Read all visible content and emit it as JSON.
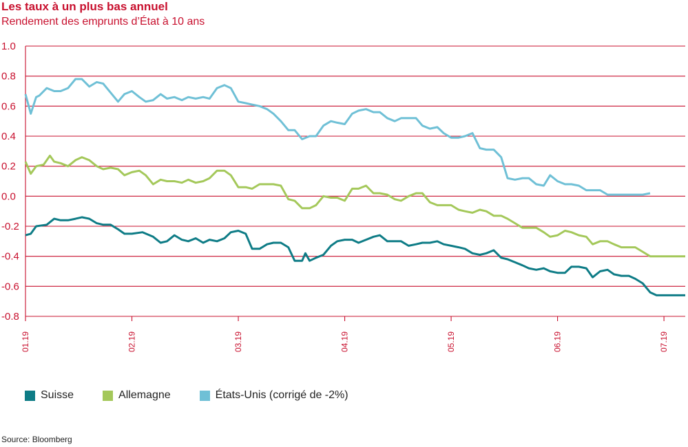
{
  "title": "Les taux à un plus bas annuel",
  "subtitle": "Rendement des emprunts d’État à 10 ans",
  "source": "Source: Bloomberg",
  "colors": {
    "accent": "#c8102e",
    "suisse": "#0e7c86",
    "allemagne": "#a4c85a",
    "etats_unis": "#6fc0d6"
  },
  "chart_data": {
    "type": "line",
    "ylim": [
      -0.8,
      1.0
    ],
    "yticks": [
      1.0,
      0.8,
      0.6,
      0.4,
      0.2,
      0.0,
      -0.2,
      -0.4,
      -0.6,
      -0.8
    ],
    "ytick_labels": [
      "1.0",
      "0.8",
      "0.6",
      "0.4",
      "0.2",
      "0.0",
      "-0.2",
      "-0.4",
      "-0.6",
      "-0.8"
    ],
    "x_range": [
      0,
      6.2
    ],
    "xticks": [
      0,
      1,
      2,
      3,
      4,
      5,
      6
    ],
    "xtick_labels": [
      "01.19",
      "02.19",
      "03.19",
      "04.19",
      "05.19",
      "06.19",
      "07.19"
    ],
    "grid": true,
    "legend_position": "bottom",
    "series": [
      {
        "name": "Suisse",
        "color_key": "suisse",
        "x": [
          0,
          0.05,
          0.1,
          0.2,
          0.27,
          0.33,
          0.4,
          0.47,
          0.53,
          0.6,
          0.67,
          0.73,
          0.8,
          0.87,
          0.93,
          1.0,
          1.1,
          1.2,
          1.27,
          1.33,
          1.4,
          1.47,
          1.53,
          1.6,
          1.67,
          1.73,
          1.8,
          1.87,
          1.93,
          2.0,
          2.07,
          2.13,
          2.2,
          2.27,
          2.33,
          2.4,
          2.47,
          2.53,
          2.6,
          2.63,
          2.67,
          2.73,
          2.8,
          2.87,
          2.93,
          3.0,
          3.07,
          3.13,
          3.2,
          3.27,
          3.33,
          3.4,
          3.47,
          3.53,
          3.6,
          3.67,
          3.73,
          3.8,
          3.87,
          3.93,
          4.0,
          4.07,
          4.13,
          4.2,
          4.27,
          4.33,
          4.4,
          4.47,
          4.53,
          4.6,
          4.67,
          4.73,
          4.8,
          4.87,
          4.93,
          5.0,
          5.07,
          5.13,
          5.2,
          5.27,
          5.33,
          5.4,
          5.47,
          5.53,
          5.6,
          5.67,
          5.73,
          5.8,
          5.87,
          5.93,
          6.0,
          6.07,
          6.13,
          6.2
        ],
        "values": [
          -0.26,
          -0.25,
          -0.2,
          -0.19,
          -0.15,
          -0.16,
          -0.16,
          -0.15,
          -0.14,
          -0.15,
          -0.18,
          -0.19,
          -0.19,
          -0.22,
          -0.25,
          -0.25,
          -0.24,
          -0.27,
          -0.31,
          -0.3,
          -0.26,
          -0.29,
          -0.3,
          -0.28,
          -0.31,
          -0.29,
          -0.3,
          -0.28,
          -0.24,
          -0.23,
          -0.25,
          -0.35,
          -0.35,
          -0.32,
          -0.31,
          -0.31,
          -0.34,
          -0.43,
          -0.43,
          -0.38,
          -0.43,
          -0.41,
          -0.39,
          -0.33,
          -0.3,
          -0.29,
          -0.29,
          -0.31,
          -0.29,
          -0.27,
          -0.26,
          -0.3,
          -0.3,
          -0.3,
          -0.33,
          -0.32,
          -0.31,
          -0.31,
          -0.3,
          -0.32,
          -0.33,
          -0.34,
          -0.35,
          -0.38,
          -0.39,
          -0.38,
          -0.36,
          -0.41,
          -0.42,
          -0.44,
          -0.46,
          -0.48,
          -0.49,
          -0.48,
          -0.5,
          -0.51,
          -0.51,
          -0.47,
          -0.47,
          -0.48,
          -0.54,
          -0.5,
          -0.49,
          -0.52,
          -0.53,
          -0.53,
          -0.55,
          -0.58,
          -0.64,
          -0.66,
          -0.66,
          -0.66,
          -0.66,
          -0.66
        ]
      },
      {
        "name": "Allemagne",
        "color_key": "allemagne",
        "x": [
          0,
          0.05,
          0.1,
          0.17,
          0.23,
          0.27,
          0.33,
          0.4,
          0.47,
          0.53,
          0.6,
          0.67,
          0.73,
          0.8,
          0.87,
          0.93,
          1.0,
          1.07,
          1.13,
          1.2,
          1.27,
          1.33,
          1.4,
          1.47,
          1.53,
          1.6,
          1.67,
          1.73,
          1.8,
          1.87,
          1.93,
          2.0,
          2.07,
          2.13,
          2.2,
          2.27,
          2.33,
          2.4,
          2.47,
          2.53,
          2.6,
          2.67,
          2.73,
          2.8,
          2.87,
          2.93,
          3.0,
          3.07,
          3.13,
          3.2,
          3.27,
          3.33,
          3.4,
          3.47,
          3.53,
          3.6,
          3.67,
          3.73,
          3.8,
          3.87,
          3.93,
          4.0,
          4.07,
          4.13,
          4.2,
          4.27,
          4.33,
          4.4,
          4.47,
          4.53,
          4.6,
          4.67,
          4.73,
          4.8,
          4.87,
          4.93,
          5.0,
          5.07,
          5.13,
          5.2,
          5.27,
          5.33,
          5.4,
          5.47,
          5.53,
          5.6,
          5.67,
          5.73,
          5.8,
          5.87,
          5.93,
          6.0,
          6.07,
          6.13,
          6.2
        ],
        "values": [
          0.23,
          0.15,
          0.2,
          0.21,
          0.27,
          0.23,
          0.22,
          0.2,
          0.24,
          0.26,
          0.24,
          0.2,
          0.18,
          0.19,
          0.18,
          0.14,
          0.16,
          0.17,
          0.14,
          0.08,
          0.11,
          0.1,
          0.1,
          0.09,
          0.11,
          0.09,
          0.1,
          0.12,
          0.17,
          0.17,
          0.14,
          0.06,
          0.06,
          0.05,
          0.08,
          0.08,
          0.08,
          0.07,
          -0.02,
          -0.03,
          -0.08,
          -0.08,
          -0.06,
          0.0,
          -0.01,
          -0.01,
          -0.03,
          0.05,
          0.05,
          0.07,
          0.02,
          0.02,
          0.01,
          -0.02,
          -0.03,
          0.0,
          0.02,
          0.02,
          -0.04,
          -0.06,
          -0.06,
          -0.06,
          -0.09,
          -0.1,
          -0.11,
          -0.09,
          -0.1,
          -0.13,
          -0.13,
          -0.15,
          -0.18,
          -0.21,
          -0.21,
          -0.21,
          -0.24,
          -0.27,
          -0.26,
          -0.23,
          -0.24,
          -0.26,
          -0.27,
          -0.32,
          -0.3,
          -0.3,
          -0.32,
          -0.34,
          -0.34,
          -0.34,
          -0.37,
          -0.4,
          -0.4,
          -0.4,
          -0.4,
          -0.4,
          -0.4
        ]
      },
      {
        "name": "États-Unis (corrigé de -2%)",
        "color_key": "etats_unis",
        "x": [
          0,
          0.05,
          0.1,
          0.13,
          0.2,
          0.27,
          0.33,
          0.4,
          0.47,
          0.53,
          0.6,
          0.67,
          0.73,
          0.8,
          0.87,
          0.93,
          1.0,
          1.07,
          1.13,
          1.2,
          1.27,
          1.33,
          1.4,
          1.47,
          1.53,
          1.6,
          1.67,
          1.73,
          1.8,
          1.87,
          1.93,
          2.0,
          2.07,
          2.13,
          2.2,
          2.27,
          2.33,
          2.4,
          2.47,
          2.53,
          2.6,
          2.67,
          2.73,
          2.8,
          2.87,
          2.93,
          3.0,
          3.07,
          3.13,
          3.2,
          3.27,
          3.33,
          3.4,
          3.47,
          3.53,
          3.6,
          3.67,
          3.73,
          3.8,
          3.87,
          3.93,
          4.0,
          4.07,
          4.13,
          4.2,
          4.27,
          4.33,
          4.4,
          4.47,
          4.53,
          4.6,
          4.67,
          4.73,
          4.8,
          4.87,
          4.93,
          5.0,
          5.07,
          5.13,
          5.2,
          5.27,
          5.33,
          5.4,
          5.47,
          5.53,
          5.6,
          5.67,
          5.73,
          5.8,
          5.87
        ],
        "values": [
          0.68,
          0.55,
          0.66,
          0.67,
          0.72,
          0.7,
          0.7,
          0.72,
          0.78,
          0.78,
          0.73,
          0.76,
          0.75,
          0.69,
          0.63,
          0.68,
          0.7,
          0.66,
          0.63,
          0.64,
          0.68,
          0.65,
          0.66,
          0.64,
          0.66,
          0.65,
          0.66,
          0.65,
          0.72,
          0.74,
          0.72,
          0.63,
          0.62,
          0.61,
          0.6,
          0.58,
          0.55,
          0.5,
          0.44,
          0.44,
          0.38,
          0.4,
          0.4,
          0.47,
          0.5,
          0.49,
          0.48,
          0.55,
          0.57,
          0.58,
          0.56,
          0.56,
          0.52,
          0.5,
          0.52,
          0.52,
          0.52,
          0.47,
          0.45,
          0.46,
          0.42,
          0.39,
          0.39,
          0.4,
          0.42,
          0.32,
          0.31,
          0.31,
          0.26,
          0.12,
          0.11,
          0.12,
          0.12,
          0.08,
          0.07,
          0.14,
          0.1,
          0.08,
          0.08,
          0.07,
          0.04,
          0.04,
          0.04,
          0.01,
          0.01,
          0.01,
          0.01,
          0.01,
          0.01,
          0.02
        ]
      }
    ]
  }
}
